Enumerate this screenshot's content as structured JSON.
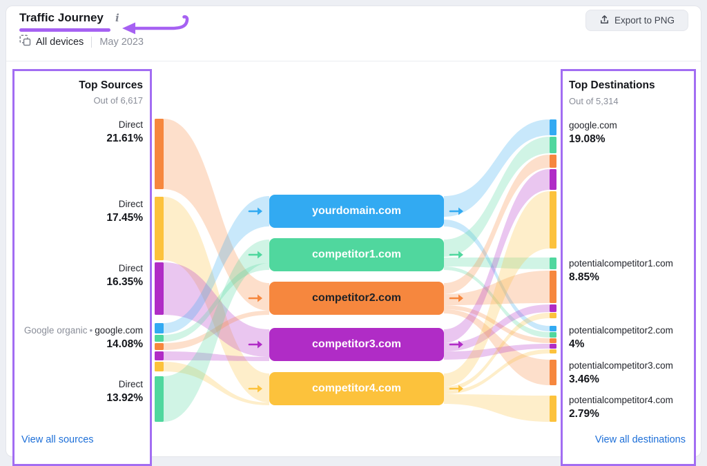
{
  "header": {
    "title": "Traffic Journey",
    "info_icon": "i",
    "devices_label": "All devices",
    "period": "May 2023",
    "export_label": "Export to PNG"
  },
  "sources_panel": {
    "title": "Top Sources",
    "subtitle": "Out of 6,617",
    "link": "View all sources",
    "items": [
      {
        "label": "Direct",
        "value": "21.61%"
      },
      {
        "label": "Direct",
        "value": "17.45%"
      },
      {
        "label": "Direct",
        "value": "16.35%"
      },
      {
        "prefix": "Google organic",
        "separator": "•",
        "label": "google.com",
        "value": "14.08%"
      },
      {
        "label": "Direct",
        "value": "13.92%"
      }
    ]
  },
  "destinations_panel": {
    "title": "Top Destinations",
    "subtitle": "Out of 5,314",
    "link": "View all destinations",
    "items": [
      {
        "label": "google.com",
        "value": "19.08%"
      },
      {
        "label": "potentialcompetitor1.com",
        "value": "8.85%"
      },
      {
        "label": "potentialcompetitor2.com",
        "value": "4%"
      },
      {
        "label": "potentialcompetitor3.com",
        "value": "3.46%"
      },
      {
        "label": "potentialcompetitor4.com",
        "value": "2.79%"
      }
    ]
  },
  "domains": [
    {
      "label": "yourdomain.com",
      "color": "blue",
      "text": "light"
    },
    {
      "label": "competitor1.com",
      "color": "green",
      "text": "light"
    },
    {
      "label": "competitor2.com",
      "color": "orange",
      "text": "dark"
    },
    {
      "label": "competitor3.com",
      "color": "purple",
      "text": "light"
    },
    {
      "label": "competitor4.com",
      "color": "yellow",
      "text": "light"
    }
  ],
  "colors": {
    "blue": "#32aaf2",
    "green": "#50d79e",
    "orange": "#f6873e",
    "purple": "#b02cc6",
    "yellow": "#fcc23c",
    "panel_border": "#a26df2",
    "accent_purple": "#a661f2",
    "link_blue": "#1d6fd8"
  },
  "sankey": {
    "flow_opacity": 0.27,
    "left_flows": [
      [
        "s1",
        "d3",
        "orange"
      ],
      [
        "s2",
        "d5",
        "yellow"
      ],
      [
        "s3",
        "d4",
        "purple"
      ],
      [
        "s4b",
        "d1",
        "blue"
      ],
      [
        "s4g",
        "d2",
        "green"
      ],
      [
        "s4o",
        "d3",
        "orange"
      ],
      [
        "s4p",
        "d4",
        "purple"
      ],
      [
        "s4y",
        "d5",
        "yellow"
      ],
      [
        "s5",
        "d2",
        "green"
      ]
    ],
    "right_flows": [
      [
        "d1",
        "g_b",
        "blue"
      ],
      [
        "d1",
        "p2_b",
        "blue"
      ],
      [
        "d2",
        "g_g",
        "green"
      ],
      [
        "d2",
        "p1_g",
        "green"
      ],
      [
        "d2",
        "p2_g",
        "green"
      ],
      [
        "d3",
        "g_o",
        "orange"
      ],
      [
        "d3",
        "p1_o",
        "orange"
      ],
      [
        "d3",
        "p2_o",
        "orange"
      ],
      [
        "d3",
        "p3_o",
        "orange"
      ],
      [
        "d4",
        "g_p",
        "purple"
      ],
      [
        "d4",
        "p1_p",
        "purple"
      ],
      [
        "d4",
        "p2_p",
        "purple"
      ],
      [
        "d5",
        "g_y",
        "yellow"
      ],
      [
        "d5",
        "p1_y",
        "yellow"
      ],
      [
        "d5",
        "p2_y",
        "yellow"
      ],
      [
        "d5",
        "p4_y",
        "yellow"
      ]
    ]
  },
  "chart_data": {
    "type": "sankey",
    "title": "Traffic Journey",
    "left_total": "Out of 6,617",
    "right_total": "Out of 5,314",
    "sources": [
      {
        "label": "Direct",
        "share": "21.61%",
        "feeds": "competitor2.com"
      },
      {
        "label": "Direct",
        "share": "17.45%",
        "feeds": "competitor4.com"
      },
      {
        "label": "Direct",
        "share": "16.35%",
        "feeds": "competitor3.com"
      },
      {
        "label": "Google organic • google.com",
        "share": "14.08%",
        "feeds": "yourdomain.com, competitor1.com, competitor2.com, competitor3.com, competitor4.com"
      },
      {
        "label": "Direct",
        "share": "13.92%",
        "feeds": "competitor1.com"
      }
    ],
    "domains": [
      "yourdomain.com",
      "competitor1.com",
      "competitor2.com",
      "competitor3.com",
      "competitor4.com"
    ],
    "destinations": [
      {
        "label": "google.com",
        "share": "19.08%",
        "fed_by": [
          "yourdomain.com",
          "competitor1.com",
          "competitor2.com",
          "competitor3.com",
          "competitor4.com"
        ]
      },
      {
        "label": "potentialcompetitor1.com",
        "share": "8.85%",
        "fed_by": [
          "competitor1.com",
          "competitor2.com",
          "competitor3.com",
          "competitor4.com"
        ]
      },
      {
        "label": "potentialcompetitor2.com",
        "share": "4%",
        "fed_by": [
          "yourdomain.com",
          "competitor1.com",
          "competitor2.com",
          "competitor3.com",
          "competitor4.com"
        ]
      },
      {
        "label": "potentialcompetitor3.com",
        "share": "3.46%",
        "fed_by": [
          "competitor2.com"
        ]
      },
      {
        "label": "potentialcompetitor4.com",
        "share": "2.79%",
        "fed_by": [
          "competitor4.com"
        ]
      }
    ]
  }
}
